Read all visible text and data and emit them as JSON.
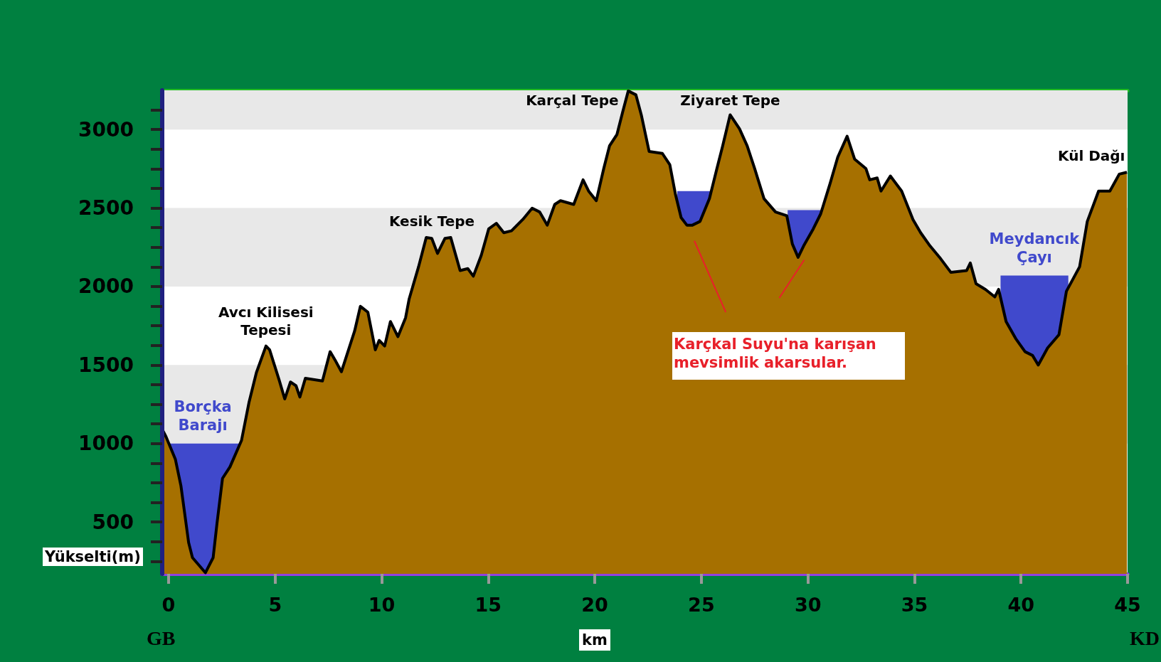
{
  "chart_data": {
    "type": "area",
    "xlabel": "km",
    "ylabel": "Yükselti(m)",
    "xlim": [
      -0.3,
      45
    ],
    "xticks": [
      0,
      5,
      10,
      15,
      20,
      25,
      30,
      35,
      40,
      45
    ],
    "ylim": [
      170,
      3250
    ],
    "yticks": [
      {
        "value": 250,
        "label": null
      },
      {
        "value": 375,
        "label": null
      },
      500,
      {
        "value": 625,
        "label": null
      },
      {
        "value": 750,
        "label": null
      },
      {
        "value": 875,
        "label": null
      },
      1000,
      {
        "value": 1125,
        "label": null
      },
      {
        "value": 1250,
        "label": null
      },
      {
        "value": 1375,
        "label": null
      },
      1500,
      {
        "value": 1625,
        "label": null
      },
      {
        "value": 1750,
        "label": null
      },
      {
        "value": 1875,
        "label": null
      },
      2000,
      {
        "value": 2125,
        "label": null
      },
      {
        "value": 2250,
        "label": null
      },
      {
        "value": 2375,
        "label": null
      },
      2500,
      {
        "value": 2625,
        "label": null
      },
      {
        "value": 2750,
        "label": null
      },
      {
        "value": 2875,
        "label": null
      },
      3000,
      {
        "value": 3125,
        "label": null
      }
    ],
    "grid": false,
    "legend": false,
    "bands": [
      {
        "axis": "y",
        "from": 1000,
        "to": 1500,
        "color": "#e8e8e8"
      },
      {
        "axis": "y",
        "from": 2000,
        "to": 2500,
        "color": "#e8e8e8"
      },
      {
        "axis": "y",
        "from": 3000,
        "to": 3250,
        "color": "#e8e8e8"
      }
    ],
    "series": [
      {
        "name": "Borçka\nBarajı",
        "color": "#4049cc",
        "x": [
          -0.1,
          3.3
        ],
        "values": [
          1000,
          1000
        ]
      },
      {
        "color": "#4049cc",
        "x": [
          23.87,
          25.47
        ],
        "values": [
          2608,
          2608
        ]
      },
      {
        "color": "#4049cc",
        "x": [
          29.05,
          30.6
        ],
        "values": [
          2487,
          2487
        ]
      },
      {
        "name": "Meydancık\nÇayı",
        "color": "#4049cc",
        "x": [
          39.04,
          42.22
        ],
        "values": [
          2070,
          2070
        ]
      },
      {
        "color": "#a67000",
        "x": [
          -0.3,
          -0.12,
          0.32,
          0.58,
          0.94,
          1.12,
          1.73,
          2.09,
          2.27,
          2.53,
          2.88,
          3.42,
          3.77,
          4.12,
          4.57,
          4.74,
          5.19,
          5.45,
          5.72,
          5.98,
          6.16,
          6.42,
          7.22,
          7.58,
          7.84,
          8.11,
          8.73,
          9.0,
          9.35,
          9.7,
          9.88,
          10.14,
          10.41,
          10.76,
          11.12,
          11.29,
          11.73,
          12.09,
          12.35,
          12.62,
          12.97,
          13.24,
          13.68,
          14.04,
          14.3,
          14.67,
          15.02,
          15.38,
          15.73,
          16.09,
          16.62,
          17.06,
          17.41,
          17.77,
          18.12,
          18.39,
          19.01,
          19.45,
          19.71,
          20.07,
          20.42,
          20.69,
          21.04,
          21.31,
          21.57,
          21.93,
          22.19,
          22.55,
          23.17,
          23.52,
          23.79,
          24.05,
          24.32,
          24.58,
          24.94,
          25.38,
          25.73,
          26.0,
          26.35,
          26.79,
          27.15,
          27.5,
          27.94,
          28.48,
          29.01,
          29.27,
          29.54,
          29.8,
          30.25,
          30.6,
          31.04,
          31.4,
          31.84,
          32.19,
          32.72,
          32.9,
          33.25,
          33.43,
          33.87,
          34.4,
          34.93,
          35.29,
          35.73,
          36.18,
          36.71,
          37.45,
          37.62,
          37.89,
          38.33,
          38.77,
          38.95,
          39.3,
          39.75,
          40.19,
          40.54,
          40.81,
          41.25,
          41.78,
          42.13,
          42.75,
          43.11,
          43.64,
          44.17,
          44.61,
          44.97
        ],
        "values": [
          1091,
          1043,
          899,
          730,
          369,
          273,
          177,
          273,
          490,
          778,
          851,
          1019,
          1260,
          1452,
          1621,
          1597,
          1404,
          1284,
          1392,
          1368,
          1296,
          1416,
          1399,
          1585,
          1525,
          1457,
          1717,
          1874,
          1837,
          1597,
          1657,
          1621,
          1777,
          1681,
          1801,
          1922,
          2126,
          2312,
          2307,
          2211,
          2307,
          2312,
          2102,
          2114,
          2066,
          2198,
          2367,
          2403,
          2343,
          2355,
          2427,
          2499,
          2475,
          2391,
          2523,
          2547,
          2523,
          2680,
          2608,
          2547,
          2752,
          2896,
          2969,
          3113,
          3246,
          3221,
          3089,
          2860,
          2848,
          2776,
          2584,
          2439,
          2391,
          2391,
          2415,
          2560,
          2752,
          2896,
          3094,
          3005,
          2896,
          2752,
          2560,
          2475,
          2451,
          2271,
          2186,
          2259,
          2367,
          2463,
          2656,
          2824,
          2957,
          2812,
          2752,
          2680,
          2692,
          2608,
          2704,
          2608,
          2427,
          2343,
          2259,
          2186,
          2090,
          2102,
          2150,
          2018,
          1982,
          1934,
          1982,
          1777,
          1669,
          1585,
          1561,
          1500,
          1609,
          1693,
          1970,
          2126,
          2415,
          2608,
          2608,
          2716,
          2728
        ]
      }
    ],
    "annotations": [
      {
        "text": "Avcı Kilisesi\nTepesi",
        "x": 4.57,
        "y": 1621
      },
      {
        "text": "Kesik Tepe",
        "x": 12.35,
        "y": 2312
      },
      {
        "text": "Karçal Tepe",
        "x": 21.57,
        "y": 3246
      },
      {
        "text": "Ziyaret Tepe",
        "x": 26.35,
        "y": 3094
      },
      {
        "text": "Kül Dağı",
        "x": 44.97,
        "y": 2728
      },
      "Karçkal Suyu'na karışan\nmevsimlik akarsular.",
      "GB",
      "KD"
    ]
  }
}
